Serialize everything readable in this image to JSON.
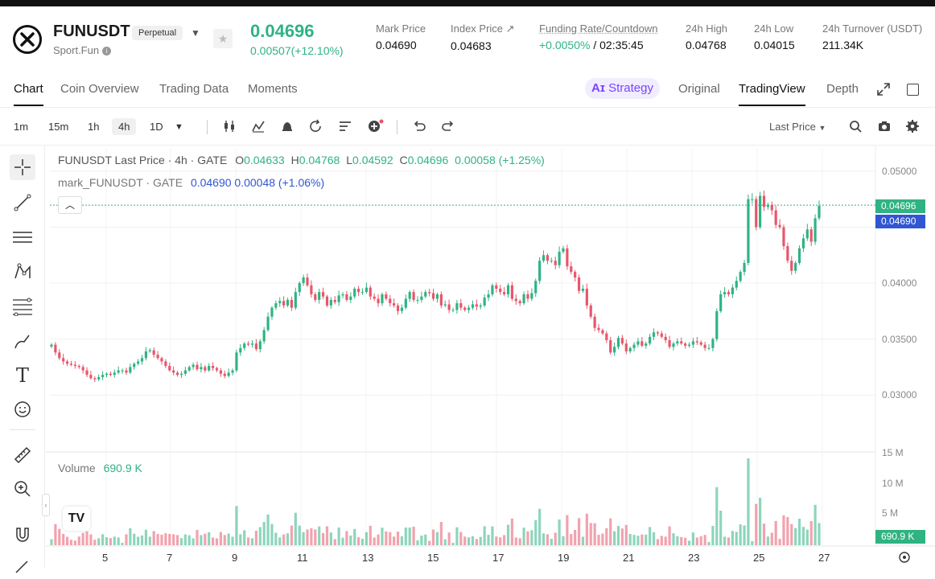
{
  "header": {
    "symbol": "FUNUSDT",
    "contract_type": "Perpetual",
    "subtitle": "Sport.Fun",
    "last_price": "0.04696",
    "change": "0.00507(+12.10%)",
    "stats": [
      {
        "label": "Mark Price",
        "value": "0.04690"
      },
      {
        "label": "Index Price ↗",
        "value": "0.04683"
      },
      {
        "label": "Funding Rate/Countdown",
        "value_green": "+0.0050%",
        "value": " / 02:35:45"
      },
      {
        "label": "24h High",
        "value": "0.04768"
      },
      {
        "label": "24h Low",
        "value": "0.04015"
      },
      {
        "label": "24h Turnover (USDT)",
        "value": "211.34K"
      }
    ]
  },
  "tabs": [
    "Chart",
    "Coin Overview",
    "Trading Data",
    "Moments"
  ],
  "view_tabs": {
    "strategy": "Strategy",
    "original": "Original",
    "tradingview": "TradingView",
    "depth": "Depth"
  },
  "toolbar": {
    "intervals": [
      "1m",
      "15m",
      "1h",
      "4h",
      "1D"
    ],
    "selected_interval": "4h",
    "price_type": "Last Price"
  },
  "legend": {
    "main": "FUNUSDT Last Price · 4h · GATE",
    "o": "0.04633",
    "h": "0.04768",
    "l": "0.04592",
    "c": "0.04696",
    "delta": "0.00058 (+1.25%)",
    "mark_label": "mark_FUNUSDT · GATE",
    "mark_value": "0.04690 0.00048 (+1.06%)",
    "volume_label": "Volume",
    "volume_value": "690.9 K"
  },
  "price_labels": {
    "last": "0.04696",
    "mark": "0.04690",
    "volume": "690.9 K"
  },
  "colors": {
    "up": "#2fb383",
    "down": "#e8566b",
    "mark": "#3056d3",
    "accent": "#7a44ff"
  },
  "chart_data": {
    "type": "candlestick",
    "y_ticks": [
      "0.05000",
      "0.04500",
      "0.04000",
      "0.03500",
      "0.03000"
    ],
    "ylim": [
      0.0275,
      0.0515
    ],
    "volume_ticks": [
      "15 M",
      "10 M",
      "5 M"
    ],
    "x_ticks": [
      "5",
      "7",
      "9",
      "11",
      "13",
      "15",
      "17",
      "19",
      "21",
      "23",
      "25",
      "27"
    ],
    "closes": [
      0.0345,
      0.0338,
      0.0333,
      0.033,
      0.0328,
      0.0327,
      0.0326,
      0.0325,
      0.0322,
      0.0318,
      0.0315,
      0.0314,
      0.0316,
      0.0318,
      0.0319,
      0.0318,
      0.032,
      0.0322,
      0.0322,
      0.032,
      0.0325,
      0.0328,
      0.033,
      0.0333,
      0.0339,
      0.034,
      0.0336,
      0.0333,
      0.033,
      0.0326,
      0.0322,
      0.032,
      0.0318,
      0.0319,
      0.0322,
      0.0325,
      0.0327,
      0.0323,
      0.0325,
      0.0322,
      0.0326,
      0.0324,
      0.0322,
      0.0319,
      0.0317,
      0.032,
      0.0322,
      0.0338,
      0.0342,
      0.0346,
      0.0345,
      0.0346,
      0.0341,
      0.0348,
      0.0358,
      0.037,
      0.0378,
      0.0382,
      0.0384,
      0.038,
      0.0385,
      0.0378,
      0.0392,
      0.04,
      0.0405,
      0.0398,
      0.039,
      0.0385,
      0.0392,
      0.0388,
      0.038,
      0.0385,
      0.0383,
      0.0389,
      0.039,
      0.0385,
      0.0388,
      0.0395,
      0.0392,
      0.0392,
      0.0396,
      0.0388,
      0.0386,
      0.0382,
      0.039,
      0.0386,
      0.0382,
      0.038,
      0.0375,
      0.0378,
      0.0386,
      0.0392,
      0.0385,
      0.0385,
      0.0388,
      0.0392,
      0.0391,
      0.0386,
      0.039,
      0.038,
      0.0381,
      0.0376,
      0.0376,
      0.0382,
      0.0378,
      0.0376,
      0.0378,
      0.0381,
      0.0379,
      0.038,
      0.0387,
      0.039,
      0.0398,
      0.0395,
      0.0392,
      0.039,
      0.0398,
      0.0386,
      0.0384,
      0.0382,
      0.039,
      0.0386,
      0.0391,
      0.0402,
      0.042,
      0.0425,
      0.042,
      0.042,
      0.0416,
      0.0428,
      0.0431,
      0.0415,
      0.041,
      0.0405,
      0.0393,
      0.0395,
      0.038,
      0.037,
      0.036,
      0.0358,
      0.0355,
      0.0349,
      0.0338,
      0.0343,
      0.0351,
      0.0346,
      0.0339,
      0.0342,
      0.0345,
      0.0348,
      0.0344,
      0.0346,
      0.0352,
      0.0356,
      0.0355,
      0.0352,
      0.0349,
      0.0343,
      0.0346,
      0.0348,
      0.0346,
      0.0344,
      0.0345,
      0.0348,
      0.0347,
      0.0345,
      0.0342,
      0.0342,
      0.035,
      0.0375,
      0.039,
      0.0392,
      0.039,
      0.0396,
      0.0402,
      0.041,
      0.0418,
      0.0475,
      0.0475,
      0.045,
      0.0478,
      0.0468,
      0.047,
      0.0465,
      0.0452,
      0.045,
      0.0433,
      0.042,
      0.0411,
      0.0418,
      0.0431,
      0.044,
      0.0448,
      0.0437,
      0.0458,
      0.0469
    ]
  }
}
